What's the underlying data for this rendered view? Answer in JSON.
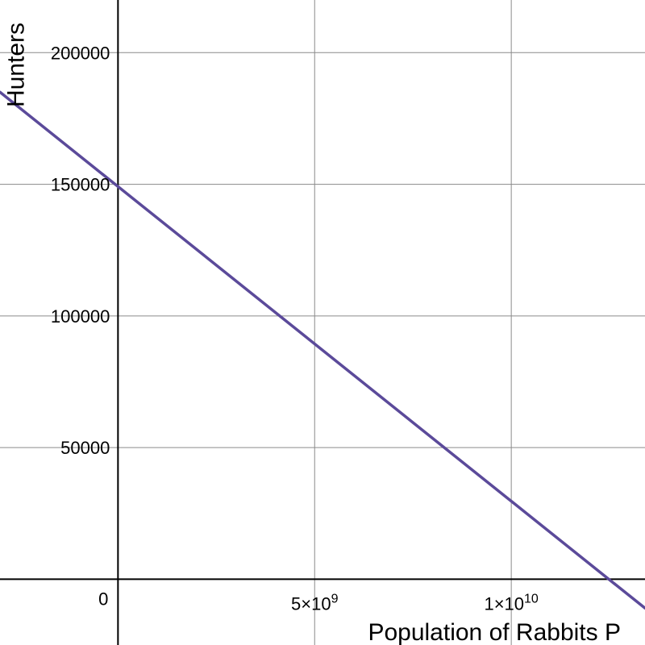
{
  "chart_data": {
    "type": "line",
    "title": "",
    "xlabel": "Population of Rabbits P",
    "ylabel": "Hunters",
    "xlim": [
      -3000000000,
      13400000000
    ],
    "ylim": [
      -25000,
      220000
    ],
    "grid": true,
    "x_ticks": [
      {
        "value": 5000000000,
        "base": "5×10",
        "exp": "9"
      },
      {
        "value": 10000000000,
        "base": "1×10",
        "exp": "10"
      }
    ],
    "origin_label": "0",
    "y_ticks": [
      {
        "value": 50000,
        "label": "50000"
      },
      {
        "value": 100000,
        "label": "100000"
      },
      {
        "value": 150000,
        "label": "150000"
      },
      {
        "value": 200000,
        "label": "200000"
      }
    ],
    "series": [
      {
        "color": "#5b4a9a",
        "x": [
          -3000000000,
          13400000000
        ],
        "y": [
          185000,
          -11000
        ]
      }
    ]
  }
}
